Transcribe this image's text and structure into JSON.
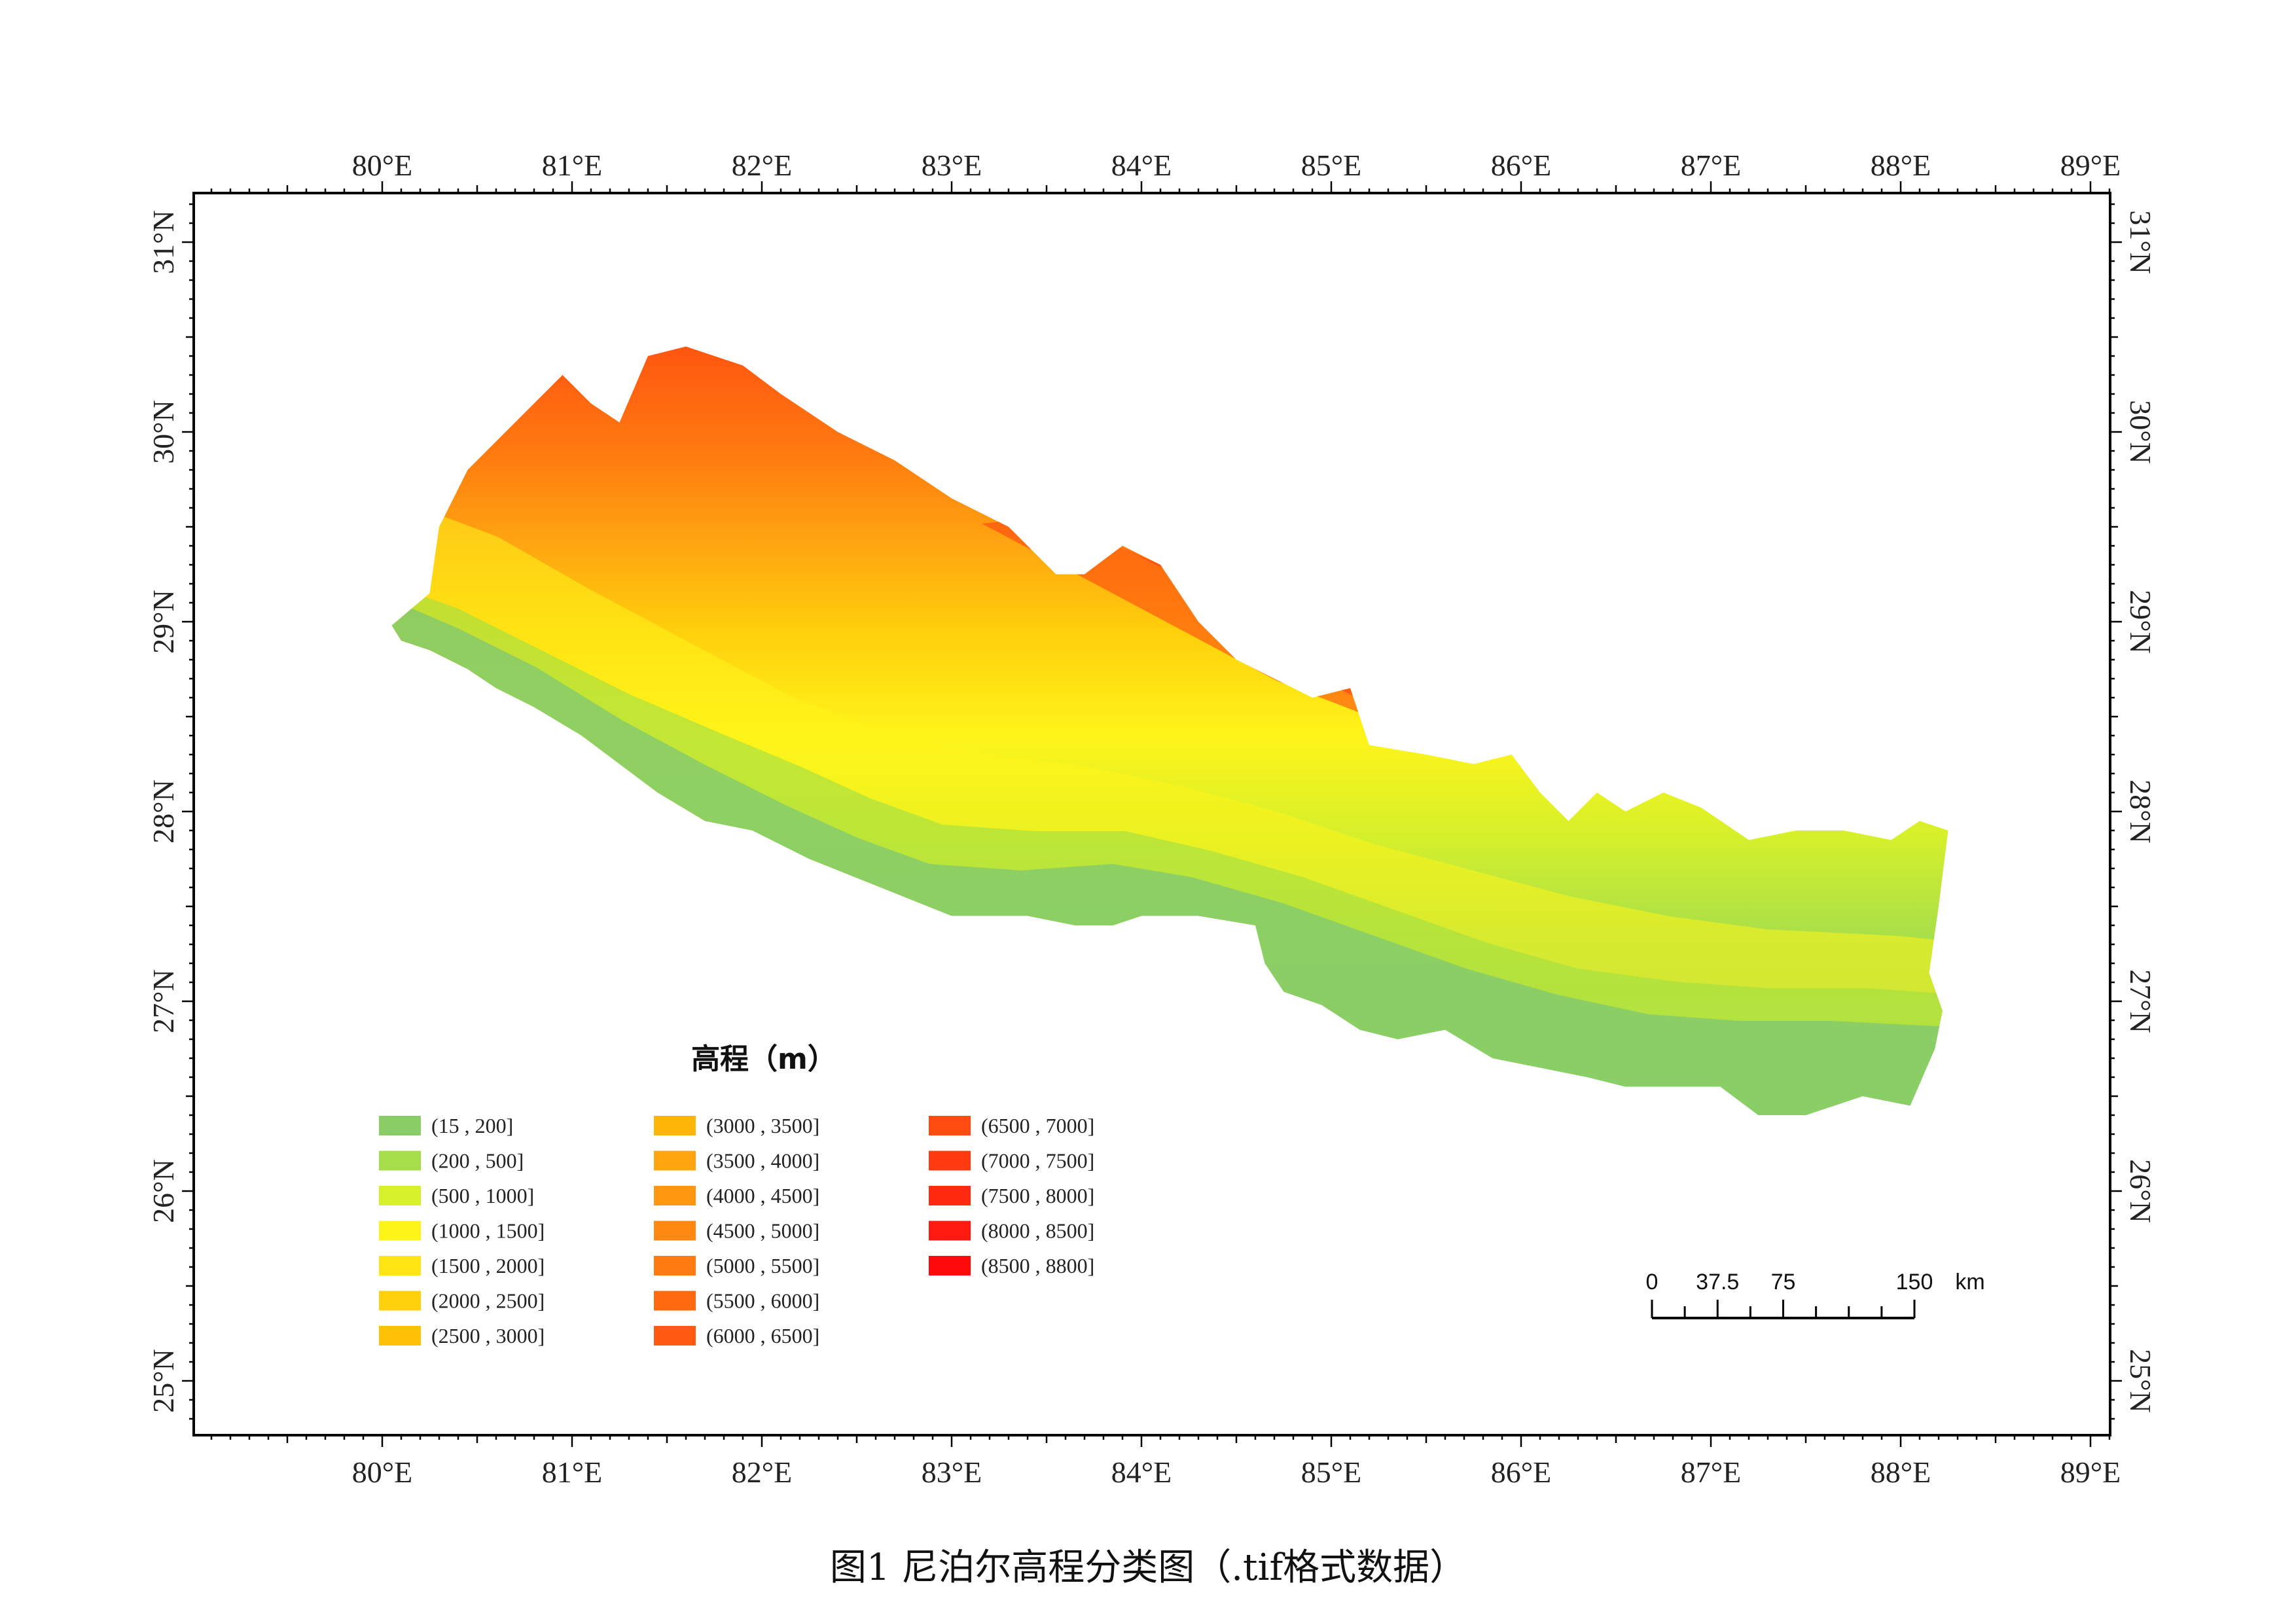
{
  "map": {
    "lon_labels": [
      "80°E",
      "81°E",
      "82°E",
      "83°E",
      "84°E",
      "85°E",
      "86°E",
      "87°E",
      "88°E",
      "89°E"
    ],
    "lat_labels": [
      "25°N",
      "26°N",
      "27°N",
      "28°N",
      "29°N",
      "30°N",
      "31°N"
    ],
    "extent": {
      "lon": [
        79.0,
        89.15
      ],
      "lat": [
        24.7,
        31.3
      ]
    }
  },
  "legend": {
    "title": "高程（m）",
    "classes": [
      {
        "label": "(15 , 200]",
        "color": "#8ACD66"
      },
      {
        "label": "(200 , 500]",
        "color": "#A6DE4A"
      },
      {
        "label": "(500 , 1000]",
        "color": "#D6F02A"
      },
      {
        "label": "(1000 , 1500]",
        "color": "#FFF41A"
      },
      {
        "label": "(1500 , 2000]",
        "color": "#FFE514"
      },
      {
        "label": "(2000 , 2500]",
        "color": "#FFD10C"
      },
      {
        "label": "(2500 , 3000]",
        "color": "#FFC008"
      },
      {
        "label": "(3000 , 3500]",
        "color": "#FFB508"
      },
      {
        "label": "(3500 , 4000]",
        "color": "#FFA510"
      },
      {
        "label": "(4000 , 4500]",
        "color": "#FF9610"
      },
      {
        "label": "(4500 , 5000]",
        "color": "#FF8810"
      },
      {
        "label": "(5000 , 5500]",
        "color": "#FF7A10"
      },
      {
        "label": "(5500 , 6000]",
        "color": "#FF6A10"
      },
      {
        "label": "(6000 , 6500]",
        "color": "#FF5A10"
      },
      {
        "label": "(6500 , 7000]",
        "color": "#FF4A10"
      },
      {
        "label": "(7000 , 7500]",
        "color": "#FF3A10"
      },
      {
        "label": "(7500 , 8000]",
        "color": "#FF2A10"
      },
      {
        "label": "(8000 , 8500]",
        "color": "#FF1A10"
      },
      {
        "label": "(8500 , 8800]",
        "color": "#FF0A0A"
      }
    ]
  },
  "scale_bar": {
    "labels": [
      "0",
      "37.5",
      "75",
      "150"
    ],
    "values_km": [
      0,
      37.5,
      75,
      150
    ],
    "unit": "km"
  },
  "caption": "图1  尼泊尔高程分类图（.tif格式数据）"
}
